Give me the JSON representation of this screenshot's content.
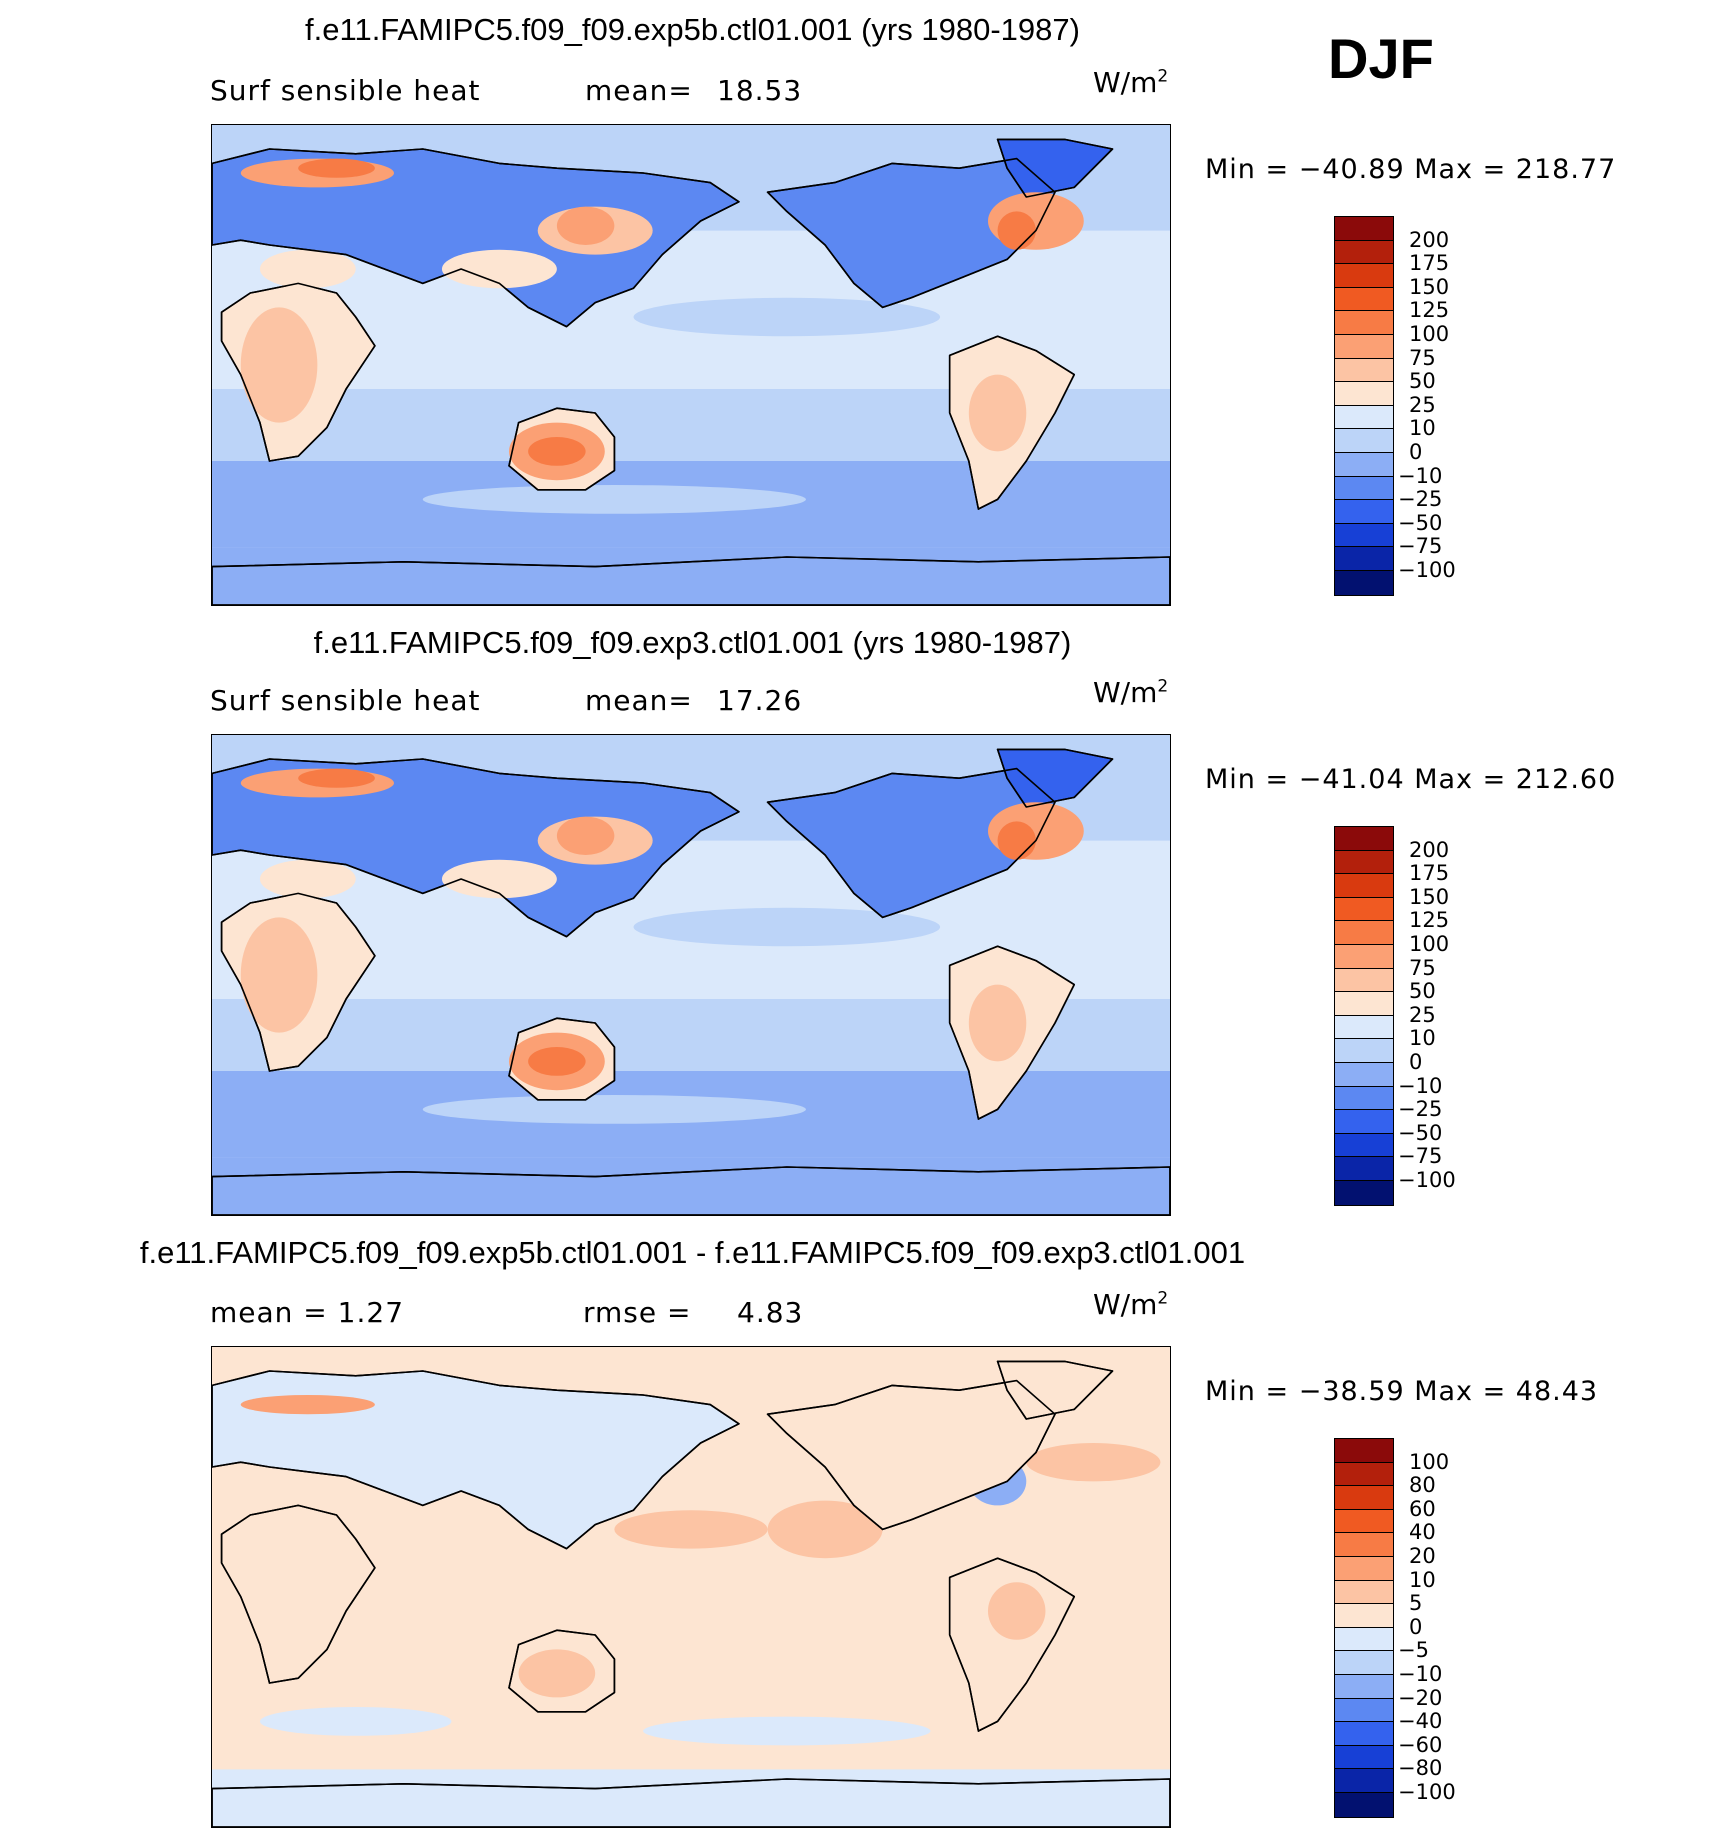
{
  "season": "DJF",
  "panels": [
    {
      "title": "f.e11.FAMIPC5.f09_f09.exp5b.ctl01.001 (yrs 1980-1987)",
      "left_label": "Surf  sensible  heat",
      "stat_label": "mean=",
      "stat_value": "18.53",
      "units_base": "W/m",
      "units_exp": "2",
      "minmax": "Min  =  −40.89  Max  =  218.77",
      "colorbar": {
        "labels": [
          "200",
          "175",
          "150",
          "125",
          "100",
          "75",
          "50",
          "25",
          "10",
          "0",
          "−10",
          "−25",
          "−50",
          "−75",
          "−100"
        ],
        "colors": [
          "#8b0a0a",
          "#b3200c",
          "#d93a0f",
          "#f05a22",
          "#f77b45",
          "#fba074",
          "#fcc4a4",
          "#fde5d2",
          "#dbe9fb",
          "#bcd4f8",
          "#8caef5",
          "#5c88f2",
          "#3462ee",
          "#1740d6",
          "#0a25a8",
          "#021170"
        ]
      }
    },
    {
      "title": "f.e11.FAMIPC5.f09_f09.exp3.ctl01.001 (yrs 1980-1987)",
      "left_label": "Surf  sensible  heat",
      "stat_label": "mean=",
      "stat_value": "17.26",
      "units_base": "W/m",
      "units_exp": "2",
      "minmax": "Min  =  −41.04  Max  =  212.60",
      "colorbar": {
        "labels": [
          "200",
          "175",
          "150",
          "125",
          "100",
          "75",
          "50",
          "25",
          "10",
          "0",
          "−10",
          "−25",
          "−50",
          "−75",
          "−100"
        ],
        "colors": [
          "#8b0a0a",
          "#b3200c",
          "#d93a0f",
          "#f05a22",
          "#f77b45",
          "#fba074",
          "#fcc4a4",
          "#fde5d2",
          "#dbe9fb",
          "#bcd4f8",
          "#8caef5",
          "#5c88f2",
          "#3462ee",
          "#1740d6",
          "#0a25a8",
          "#021170"
        ]
      }
    },
    {
      "title": "f.e11.FAMIPC5.f09_f09.exp5b.ctl01.001 - f.e11.FAMIPC5.f09_f09.exp3.ctl01.001",
      "left_label": "mean  =     1.27",
      "stat_label": "rmse  =",
      "stat_value": "4.83",
      "units_base": "W/m",
      "units_exp": "2",
      "minmax": "Min  =  −38.59  Max  =    48.43",
      "colorbar": {
        "labels": [
          "100",
          "80",
          "60",
          "40",
          "20",
          "10",
          "5",
          "0",
          "−5",
          "−10",
          "−20",
          "−40",
          "−60",
          "−80",
          "−100"
        ],
        "colors": [
          "#8b0a0a",
          "#b3200c",
          "#d93a0f",
          "#f05a22",
          "#f77b45",
          "#fba074",
          "#fcc4a4",
          "#fde5d2",
          "#dbe9fb",
          "#bcd4f8",
          "#8caef5",
          "#5c88f2",
          "#3462ee",
          "#1740d6",
          "#0a25a8",
          "#021170"
        ]
      }
    }
  ]
}
